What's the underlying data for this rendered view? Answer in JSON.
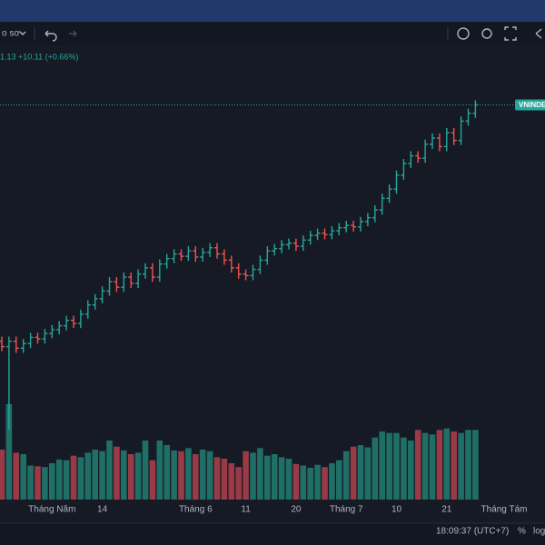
{
  "toolbar": {
    "interval": "o sơ",
    "change": "1.13 +10.11 (+0.66%)"
  },
  "status": {
    "time": "18:09:37 (UTC+7)",
    "percent": "%",
    "log": "log"
  },
  "chart_data": {
    "type": "ohlc",
    "symbol": "VNINDEX",
    "categories": [
      null,
      null,
      null,
      null,
      null,
      null,
      null,
      "Tháng Năm",
      null,
      null,
      null,
      null,
      null,
      null,
      "14",
      null,
      null,
      null,
      null,
      null,
      null,
      null,
      null,
      null,
      null,
      null,
      null,
      "Tháng 6",
      null,
      null,
      null,
      null,
      null,
      null,
      "11",
      null,
      null,
      null,
      null,
      null,
      null,
      "20",
      null,
      null,
      null,
      null,
      null,
      null,
      "Tháng 7",
      null,
      null,
      null,
      null,
      null,
      null,
      "10",
      null,
      null,
      null,
      null,
      null,
      null,
      "21",
      null,
      null,
      null,
      null,
      null,
      null,
      null,
      "Tháng Tám"
    ],
    "open": [
      1235,
      1228,
      1235,
      1226,
      1232,
      1240,
      1238,
      1245,
      1250,
      1255,
      1262,
      1258,
      1270,
      1282,
      1290,
      1300,
      1312,
      1305,
      1318,
      1310,
      1322,
      1330,
      1318,
      1335,
      1342,
      1348,
      1345,
      1352,
      1344,
      1350,
      1356,
      1348,
      1340,
      1330,
      1322,
      1320,
      1328,
      1340,
      1352,
      1355,
      1360,
      1362,
      1358,
      1366,
      1372,
      1375,
      1373,
      1378,
      1382,
      1385,
      1383,
      1390,
      1395,
      1405,
      1420,
      1432,
      1450,
      1465,
      1475,
      1472,
      1490,
      1498,
      1487,
      1505,
      1495,
      1520,
      1530,
      null,
      null,
      null,
      null
    ],
    "high": [
      1241,
      1241,
      1241,
      1238,
      1246,
      1246,
      1251,
      1256,
      1261,
      1268,
      1268,
      1276,
      1288,
      1296,
      1306,
      1318,
      1318,
      1324,
      1324,
      1328,
      1336,
      1336,
      1341,
      1348,
      1354,
      1354,
      1358,
      1358,
      1356,
      1362,
      1362,
      1354,
      1346,
      1336,
      1328,
      1334,
      1346,
      1358,
      1361,
      1366,
      1368,
      1368,
      1372,
      1378,
      1381,
      1381,
      1384,
      1388,
      1391,
      1391,
      1396,
      1401,
      1411,
      1426,
      1438,
      1456,
      1471,
      1481,
      1481,
      1496,
      1504,
      1504,
      1511,
      1511,
      1526,
      1536,
      1547,
      null,
      null,
      null,
      null
    ],
    "low": [
      1222,
      1120,
      1220,
      1220,
      1226,
      1232,
      1232,
      1239,
      1244,
      1249,
      1252,
      1252,
      1264,
      1276,
      1284,
      1294,
      1299,
      1299,
      1304,
      1304,
      1316,
      1312,
      1312,
      1329,
      1336,
      1339,
      1339,
      1338,
      1338,
      1344,
      1342,
      1334,
      1324,
      1316,
      1314,
      1314,
      1322,
      1334,
      1346,
      1349,
      1354,
      1352,
      1352,
      1360,
      1366,
      1367,
      1367,
      1372,
      1376,
      1377,
      1377,
      1384,
      1389,
      1399,
      1414,
      1426,
      1444,
      1459,
      1466,
      1466,
      1484,
      1481,
      1481,
      1489,
      1489,
      1514,
      1524,
      null,
      null,
      null,
      null
    ],
    "close": [
      1228,
      1235,
      1226,
      1232,
      1240,
      1238,
      1245,
      1250,
      1255,
      1262,
      1258,
      1270,
      1282,
      1290,
      1300,
      1312,
      1305,
      1318,
      1310,
      1322,
      1330,
      1318,
      1335,
      1342,
      1348,
      1345,
      1352,
      1344,
      1350,
      1356,
      1348,
      1340,
      1330,
      1322,
      1320,
      1328,
      1340,
      1352,
      1355,
      1360,
      1362,
      1358,
      1366,
      1372,
      1375,
      1373,
      1378,
      1382,
      1385,
      1383,
      1390,
      1395,
      1405,
      1420,
      1432,
      1450,
      1465,
      1475,
      1472,
      1490,
      1498,
      1487,
      1505,
      1495,
      1520,
      1530,
      1541,
      null,
      null,
      null,
      null
    ],
    "volume": [
      660,
      1260,
      620,
      600,
      450,
      440,
      430,
      480,
      530,
      520,
      580,
      560,
      620,
      660,
      640,
      780,
      700,
      650,
      600,
      620,
      780,
      520,
      780,
      720,
      650,
      640,
      680,
      600,
      660,
      640,
      560,
      540,
      480,
      430,
      640,
      620,
      680,
      580,
      600,
      560,
      540,
      470,
      450,
      420,
      460,
      430,
      480,
      520,
      640,
      700,
      720,
      690,
      820,
      900,
      880,
      880,
      820,
      780,
      920,
      880,
      860,
      920,
      940,
      900,
      880,
      920,
      920,
      null,
      null,
      null,
      null
    ],
    "ylim": [
      1030,
      1618
    ],
    "volume_lim": [
      0,
      3000
    ],
    "up_color": "#26a69a",
    "down_color": "#ef5350",
    "up_volume_color": "#1f6f66",
    "down_volume_color": "#9a3a47"
  }
}
